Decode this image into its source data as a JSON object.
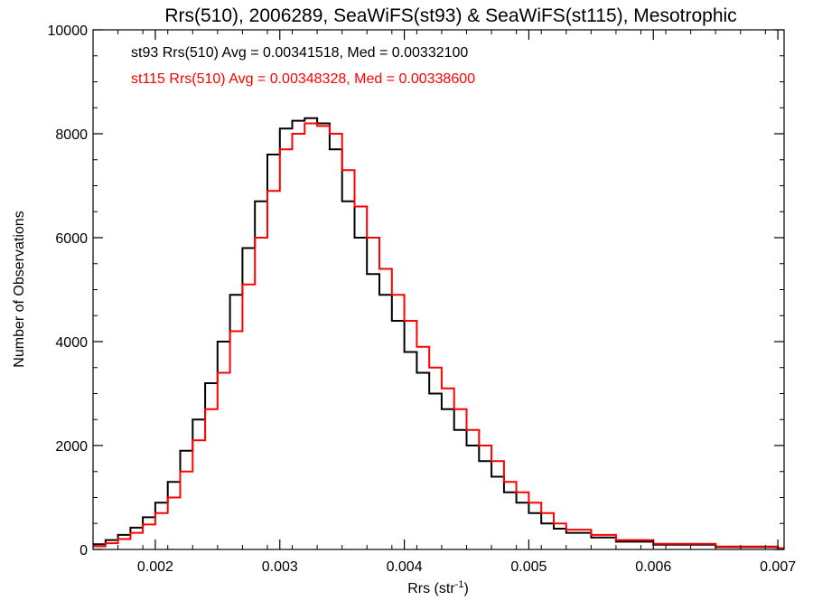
{
  "colors": {
    "st93": "#000000",
    "st115": "#ff0000",
    "background": "#ffffff",
    "axes": "#000000"
  },
  "chart_data": {
    "type": "histogram-step",
    "title": "Rrs(510), 2006289, SeaWiFS(st93) & SeaWiFS(st115), Mesotrophic",
    "xlabel": "Rrs (str",
    "xlabel_sup": "-1",
    "xlabel_close": ")",
    "ylabel": "Number of Observations",
    "xlim": [
      0.0015,
      0.00705
    ],
    "ylim": [
      0,
      10000
    ],
    "xticks": [
      0.002,
      0.003,
      0.004,
      0.005,
      0.006,
      0.007
    ],
    "xtick_labels": [
      "0.002",
      "0.003",
      "0.004",
      "0.005",
      "0.006",
      "0.007"
    ],
    "yticks": [
      0,
      2000,
      4000,
      6000,
      8000,
      10000
    ],
    "ytick_labels": [
      "0",
      "2000",
      "4000",
      "6000",
      "8000",
      "10000"
    ],
    "annotations": [
      {
        "text": "st93 Rrs(510) Avg = 0.00341518, Med = 0.00332100",
        "color": "#000000"
      },
      {
        "text": "st115 Rrs(510) Avg = 0.00348328, Med = 0.00338600",
        "color": "#ff0000"
      }
    ],
    "series": [
      {
        "color": "#000000",
        "x": [
          0.0015,
          0.0016,
          0.0017,
          0.0018,
          0.0019,
          0.002,
          0.0021,
          0.0022,
          0.0023,
          0.0024,
          0.0025,
          0.0026,
          0.0027,
          0.0028,
          0.0029,
          0.003,
          0.0031,
          0.0032,
          0.0033,
          0.0034,
          0.0035,
          0.0036,
          0.0037,
          0.0038,
          0.0039,
          0.004,
          0.0041,
          0.0042,
          0.0043,
          0.0044,
          0.0045,
          0.0046,
          0.0047,
          0.0048,
          0.0049,
          0.005,
          0.0051,
          0.0052,
          0.0053,
          0.0055,
          0.0057,
          0.006,
          0.0065,
          0.007
        ],
        "y": [
          100,
          180,
          280,
          420,
          620,
          900,
          1300,
          1900,
          2500,
          3200,
          4000,
          4900,
          5800,
          6700,
          7600,
          8100,
          8250,
          8300,
          8200,
          7700,
          6700,
          6000,
          5300,
          4900,
          4400,
          3800,
          3400,
          3000,
          2700,
          2300,
          2000,
          1700,
          1400,
          1100,
          900,
          700,
          500,
          400,
          320,
          230,
          150,
          90,
          45,
          20
        ]
      },
      {
        "color": "#ff0000",
        "x": [
          0.0015,
          0.0016,
          0.0017,
          0.0018,
          0.0019,
          0.002,
          0.0021,
          0.0022,
          0.0023,
          0.0024,
          0.0025,
          0.0026,
          0.0027,
          0.0028,
          0.0029,
          0.003,
          0.0031,
          0.0032,
          0.0033,
          0.0034,
          0.0035,
          0.0036,
          0.0037,
          0.0038,
          0.0039,
          0.004,
          0.0041,
          0.0042,
          0.0043,
          0.0044,
          0.0045,
          0.0046,
          0.0047,
          0.0048,
          0.0049,
          0.005,
          0.0051,
          0.0052,
          0.0053,
          0.0055,
          0.0057,
          0.006,
          0.0065,
          0.007
        ],
        "y": [
          60,
          120,
          200,
          320,
          480,
          700,
          1000,
          1500,
          2100,
          2700,
          3400,
          4200,
          5100,
          6000,
          6900,
          7700,
          8000,
          8200,
          8150,
          8000,
          7300,
          6600,
          6000,
          5400,
          4900,
          4400,
          3900,
          3500,
          3100,
          2700,
          2300,
          2000,
          1700,
          1300,
          1100,
          900,
          700,
          500,
          380,
          280,
          180,
          110,
          55,
          25
        ]
      }
    ]
  }
}
